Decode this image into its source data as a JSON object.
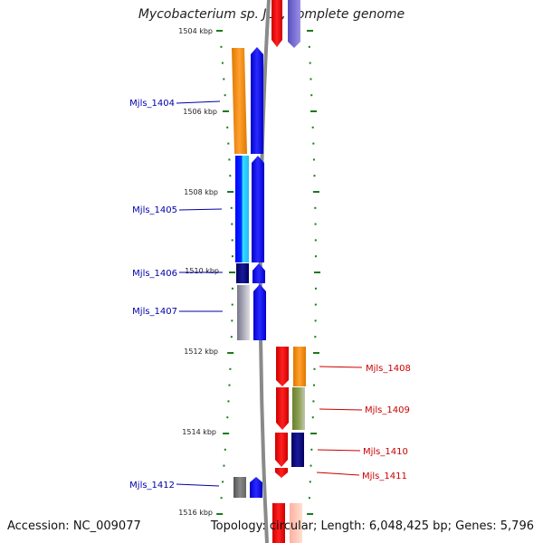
{
  "title": "Mycobacterium sp. JLS, complete genome",
  "footer": {
    "accession": "Accession: NC_009077",
    "summary": "Topology: circular; Length: 6,048,425 bp; Genes: 5,796"
  },
  "axis": {
    "ticks": [
      "1504 kbp",
      "1506 kbp",
      "1508 kbp",
      "1510 kbp",
      "1512 kbp",
      "1514 kbp",
      "1516 kbp"
    ]
  },
  "genes": [
    {
      "label": "Mjls_1404",
      "color": "#0000aa"
    },
    {
      "label": "Mjls_1405",
      "color": "#0000aa"
    },
    {
      "label": "Mjls_1406",
      "color": "#0000aa"
    },
    {
      "label": "Mjls_1407",
      "color": "#0000aa"
    },
    {
      "label": "Mjls_1408",
      "color": "#cc0000"
    },
    {
      "label": "Mjls_1409",
      "color": "#cc0000"
    },
    {
      "label": "Mjls_1410",
      "color": "#cc0000"
    },
    {
      "label": "Mjls_1411",
      "color": "#cc0000"
    },
    {
      "label": "Mjls_1412",
      "color": "#0000aa"
    }
  ],
  "colors": {
    "tick": "#1a7a1a",
    "forward": "#0000ff",
    "reverse": "#ff0000",
    "cog_orange": "#ff8c00",
    "cog_cyan": "#33ccff",
    "cog_navy": "#000080",
    "cog_gray": "#888888",
    "cog_olive": "#7a8c3a",
    "backbone": "#888888"
  }
}
